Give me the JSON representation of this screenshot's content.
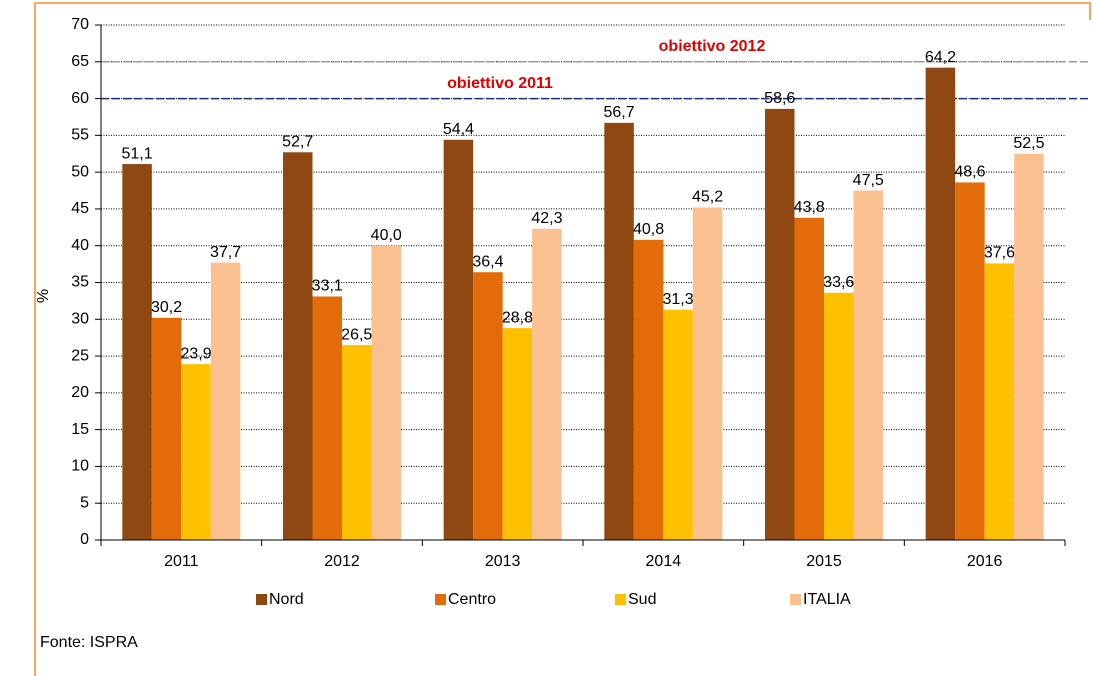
{
  "chart_data": {
    "type": "bar",
    "categories": [
      "2011",
      "2012",
      "2013",
      "2014",
      "2015",
      "2016"
    ],
    "series": [
      {
        "name": "Nord",
        "color": "#8f4812",
        "values": [
          51.1,
          52.7,
          54.4,
          56.7,
          58.6,
          64.2
        ],
        "value_labels": [
          "51,1",
          "52,7",
          "54,4",
          "56,7",
          "58,6",
          "64,2"
        ]
      },
      {
        "name": "Centro",
        "color": "#e36c0a",
        "values": [
          30.2,
          33.1,
          36.4,
          40.8,
          43.8,
          48.6
        ],
        "value_labels": [
          "30,2",
          "33,1",
          "36,4",
          "40,8",
          "43,8",
          "48,6"
        ]
      },
      {
        "name": "Sud",
        "color": "#ffc000",
        "values": [
          23.9,
          26.5,
          28.8,
          31.3,
          33.6,
          37.6
        ],
        "value_labels": [
          "23,9",
          "26,5",
          "28,8",
          "31,3",
          "33,6",
          "37,6"
        ]
      },
      {
        "name": "ITALIA",
        "color": "#fac090",
        "values": [
          37.7,
          40.0,
          42.3,
          45.2,
          47.5,
          52.5
        ],
        "value_labels": [
          "37,7",
          "40,0",
          "42,3",
          "45,2",
          "47,5",
          "52,5"
        ]
      }
    ],
    "reference_lines": [
      {
        "value": 60,
        "label": "obiettivo 2011",
        "color": "#1f2d7a"
      },
      {
        "value": 65,
        "label": "obiettivo 2012",
        "color": "#999999"
      }
    ],
    "y_label": "%",
    "ylim": [
      0,
      70
    ],
    "yticks": [
      0,
      5,
      10,
      15,
      20,
      25,
      30,
      35,
      40,
      45,
      50,
      55,
      60,
      65,
      70
    ],
    "grid": true,
    "legend": "bottom",
    "source": "Fonte: ISPRA"
  }
}
